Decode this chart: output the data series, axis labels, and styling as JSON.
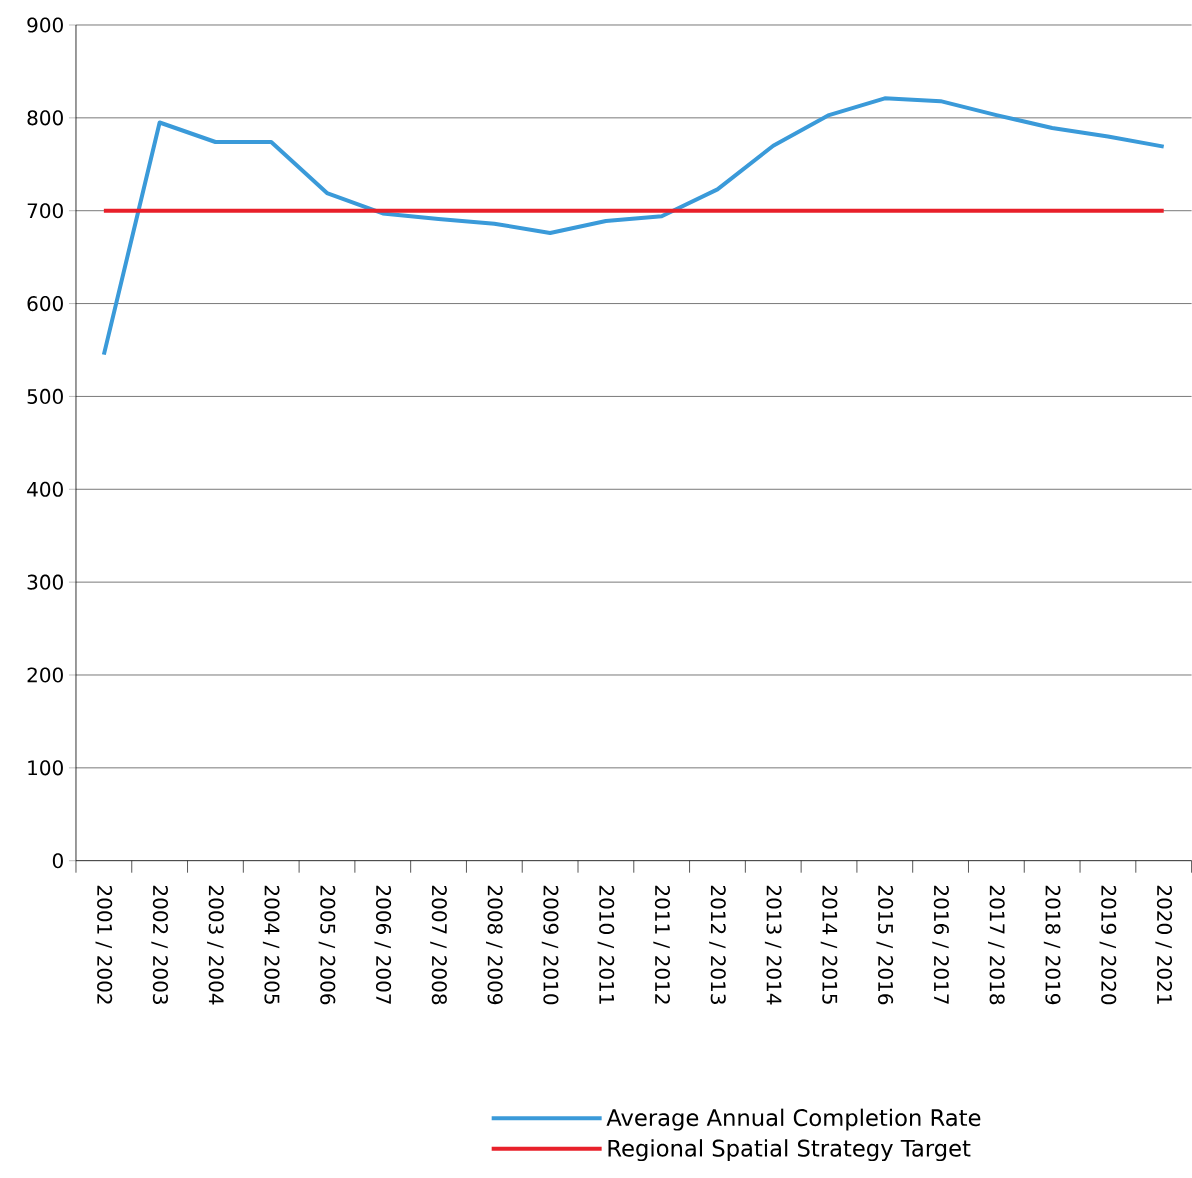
{
  "chart_data": {
    "type": "line",
    "categories": [
      "2001 / 2002",
      "2002 / 2003",
      "2003 / 2004",
      "2004 / 2005",
      "2005 / 2006",
      "2006 / 2007",
      "2007 / 2008",
      "2008 / 2009",
      "2009 / 2010",
      "2010 / 2011",
      "2011 / 2012",
      "2012 / 2013",
      "2013 / 2014",
      "2014 / 2015",
      "2015 / 2016",
      "2016 / 2017",
      "2017 / 2018",
      "2018 / 2019",
      "2019 / 2020",
      "2020 / 2021"
    ],
    "series": [
      {
        "name": "Average Annual Completion Rate",
        "color": "#3a9ad9",
        "values": [
          545,
          795,
          774,
          774,
          719,
          697,
          691,
          686,
          676,
          689,
          694,
          723,
          770,
          803,
          821,
          818,
          803,
          789,
          780,
          769
        ]
      },
      {
        "name": "Regional Spatial Strategy Target",
        "color": "#e8202a",
        "values": [
          700,
          700,
          700,
          700,
          700,
          700,
          700,
          700,
          700,
          700,
          700,
          700,
          700,
          700,
          700,
          700,
          700,
          700,
          700,
          700
        ]
      }
    ],
    "ylim": [
      0,
      900
    ],
    "yticks": [
      0,
      100,
      200,
      300,
      400,
      500,
      600,
      700,
      800,
      900
    ],
    "grid": "y",
    "legend": "bottom",
    "marker": "none",
    "line_style": "solid"
  }
}
